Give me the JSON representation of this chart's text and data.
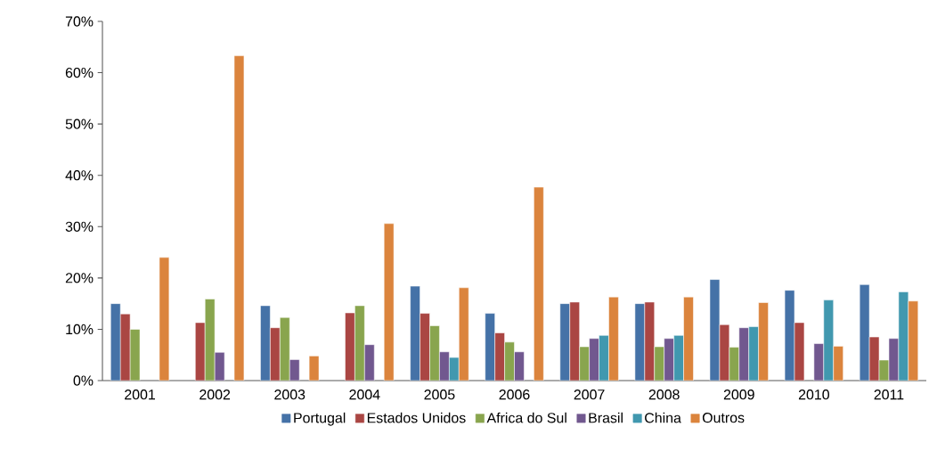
{
  "chart_data": {
    "type": "bar",
    "categories": [
      "2001",
      "2002",
      "2003",
      "2004",
      "2005",
      "2006",
      "2007",
      "2008",
      "2009",
      "2010",
      "2011"
    ],
    "series": [
      {
        "name": "Portugal",
        "color": "#4572a7",
        "values": [
          15.0,
          null,
          14.6,
          null,
          18.4,
          13.1,
          15.0,
          15.0,
          19.7,
          17.6,
          18.7
        ]
      },
      {
        "name": "Estados Unidos",
        "color": "#aa4643",
        "values": [
          13.0,
          11.3,
          10.3,
          13.2,
          13.1,
          9.3,
          15.3,
          15.3,
          10.9,
          11.3,
          8.5
        ]
      },
      {
        "name": "Africa do Sul",
        "color": "#89a54e",
        "values": [
          10.0,
          15.9,
          12.3,
          14.6,
          10.7,
          7.5,
          6.6,
          6.6,
          6.5,
          null,
          4.0
        ]
      },
      {
        "name": "Brasil",
        "color": "#71588f",
        "values": [
          null,
          5.5,
          4.1,
          7.0,
          5.6,
          5.6,
          8.2,
          8.2,
          10.3,
          7.2,
          8.2
        ]
      },
      {
        "name": "China",
        "color": "#4198af",
        "values": [
          null,
          null,
          null,
          null,
          4.5,
          null,
          8.8,
          8.8,
          10.5,
          15.7,
          17.3
        ]
      },
      {
        "name": "Outros",
        "color": "#db843d",
        "values": [
          24.0,
          63.3,
          4.8,
          30.6,
          18.1,
          37.7,
          16.3,
          16.3,
          15.2,
          6.7,
          15.5
        ]
      }
    ],
    "ylim": [
      0,
      70
    ],
    "yticks": [
      {
        "value": 0,
        "label": "0%"
      },
      {
        "value": 10,
        "label": "10%"
      },
      {
        "value": 20,
        "label": "20%"
      },
      {
        "value": 30,
        "label": "30%"
      },
      {
        "value": 40,
        "label": "40%"
      },
      {
        "value": 50,
        "label": "50%"
      },
      {
        "value": 60,
        "label": "60%"
      },
      {
        "value": 70,
        "label": "70%"
      }
    ],
    "grid": false,
    "legend": "bottom"
  }
}
